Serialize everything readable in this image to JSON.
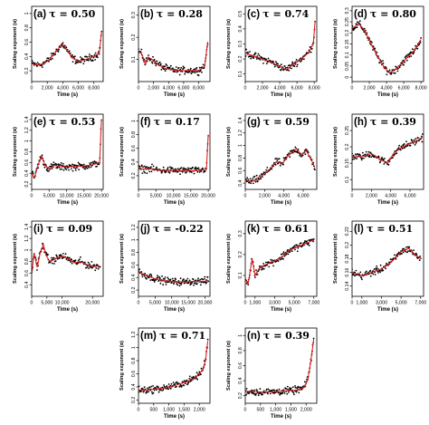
{
  "chart_data": [
    {
      "type": "scatter",
      "label": "(a)",
      "tau": "τ = 0.50",
      "ylabel": "Scaling exponent (α)",
      "xlabel": "Time (s)",
      "xticks": [
        0,
        2000,
        4000,
        6000,
        8000
      ],
      "xtick_labels": [
        "0",
        "2,000",
        "4,000",
        "6,000",
        "8,000"
      ],
      "xlim": [
        0,
        9200
      ],
      "yticks": [
        0.2,
        0.4,
        0.6,
        0.8,
        1.0
      ],
      "ylim": [
        0.05,
        1.1
      ],
      "trend": [
        [
          0,
          0.3
        ],
        [
          800,
          0.28
        ],
        [
          1500,
          0.3
        ],
        [
          2200,
          0.35
        ],
        [
          2800,
          0.42
        ],
        [
          3500,
          0.52
        ],
        [
          4000,
          0.57
        ],
        [
          4500,
          0.5
        ],
        [
          5200,
          0.38
        ],
        [
          6000,
          0.33
        ],
        [
          7000,
          0.36
        ],
        [
          8000,
          0.4
        ],
        [
          8700,
          0.45
        ],
        [
          9000,
          0.75
        ]
      ]
    },
    {
      "type": "scatter",
      "label": "(b)",
      "tau": "τ = 0.28",
      "ylabel": "Scaling exponent (α)",
      "xlabel": "Time (s)",
      "xticks": [
        0,
        2000,
        4000,
        6000,
        8000
      ],
      "xtick_labels": [
        "0",
        "2,000",
        "4,000",
        "6,000",
        "8,000"
      ],
      "xlim": [
        0,
        9500
      ],
      "yticks": [
        0.1,
        0.2,
        0.3
      ],
      "ylim": [
        0.0,
        0.34
      ],
      "trend": [
        [
          0,
          0.14
        ],
        [
          500,
          0.12
        ],
        [
          900,
          0.08
        ],
        [
          1300,
          0.11
        ],
        [
          1800,
          0.1
        ],
        [
          2500,
          0.08
        ],
        [
          3500,
          0.06
        ],
        [
          5000,
          0.05
        ],
        [
          6500,
          0.05
        ],
        [
          8000,
          0.05
        ],
        [
          8800,
          0.07
        ],
        [
          9200,
          0.18
        ]
      ]
    },
    {
      "type": "scatter",
      "label": "(c)",
      "tau": "τ = 0.74",
      "ylabel": "Scaling exponent (α)",
      "xlabel": "Time (s)",
      "xticks": [
        0,
        2000,
        4000,
        6000,
        8000
      ],
      "xtick_labels": [
        "0",
        "2,000",
        "4,000",
        "6,000",
        "8,000"
      ],
      "xlim": [
        0,
        8300
      ],
      "yticks": [
        0.1,
        0.2,
        0.3,
        0.4,
        0.5
      ],
      "ylim": [
        0.05,
        0.55
      ],
      "trend": [
        [
          0,
          0.24
        ],
        [
          1000,
          0.22
        ],
        [
          2000,
          0.2
        ],
        [
          3000,
          0.18
        ],
        [
          4000,
          0.15
        ],
        [
          4800,
          0.13
        ],
        [
          5500,
          0.16
        ],
        [
          6500,
          0.2
        ],
        [
          7300,
          0.24
        ],
        [
          7900,
          0.3
        ],
        [
          8100,
          0.45
        ]
      ]
    },
    {
      "type": "scatter",
      "label": "(d)",
      "tau": "τ = 0.80",
      "ylabel": "Scaling exponent (α)",
      "xlabel": "Time (s)",
      "xticks": [
        0,
        2000,
        4000,
        6000,
        8000
      ],
      "xtick_labels": [
        "0",
        "2,000",
        "4,000",
        "6,000",
        "8,000"
      ],
      "xlim": [
        0,
        8300
      ],
      "yticks": [
        0.0,
        0.05,
        0.1,
        0.15,
        0.2,
        0.25,
        0.3
      ],
      "ylim": [
        -0.02,
        0.32
      ],
      "trend": [
        [
          0,
          0.22
        ],
        [
          800,
          0.24
        ],
        [
          1500,
          0.21
        ],
        [
          2200,
          0.15
        ],
        [
          3000,
          0.09
        ],
        [
          3800,
          0.04
        ],
        [
          4400,
          0.02
        ],
        [
          5200,
          0.04
        ],
        [
          6200,
          0.08
        ],
        [
          7200,
          0.12
        ],
        [
          8000,
          0.17
        ]
      ]
    },
    {
      "type": "scatter",
      "label": "(e)",
      "tau": "τ = 0.53",
      "ylabel": "Scaling exponent (α)",
      "xlabel": "Time (s)",
      "xticks": [
        0,
        5000,
        10000,
        15000,
        20000
      ],
      "xtick_labels": [
        "0",
        "5,000",
        "10,000",
        "15,000",
        "20,000"
      ],
      "xlim": [
        0,
        20500
      ],
      "yticks": [
        0.2,
        0.4,
        0.6,
        0.8,
        1.0,
        1.2,
        1.4
      ],
      "ylim": [
        0.1,
        1.5
      ],
      "trend": [
        [
          0,
          0.4
        ],
        [
          800,
          0.32
        ],
        [
          1800,
          0.55
        ],
        [
          2800,
          0.72
        ],
        [
          3800,
          0.55
        ],
        [
          5000,
          0.48
        ],
        [
          6500,
          0.55
        ],
        [
          8000,
          0.52
        ],
        [
          11000,
          0.52
        ],
        [
          14000,
          0.53
        ],
        [
          17000,
          0.55
        ],
        [
          19500,
          0.6
        ],
        [
          20000,
          1.4
        ]
      ]
    },
    {
      "type": "scatter",
      "label": "(f)",
      "tau": "τ = 0.17",
      "ylabel": "Scaling exponent (α)",
      "xlabel": "Time (s)",
      "xticks": [
        0,
        5000,
        10000,
        15000,
        20000
      ],
      "xtick_labels": [
        "0",
        "5,000",
        "10,000",
        "15,000",
        "20,000"
      ],
      "xlim": [
        0,
        20500
      ],
      "yticks": [
        0.2,
        0.4,
        0.6,
        0.8,
        1.0
      ],
      "ylim": [
        0.0,
        1.1
      ],
      "trend": [
        [
          0,
          0.3
        ],
        [
          2000,
          0.3
        ],
        [
          4000,
          0.3
        ],
        [
          6000,
          0.28
        ],
        [
          8000,
          0.28
        ],
        [
          10000,
          0.28
        ],
        [
          12000,
          0.27
        ],
        [
          14000,
          0.28
        ],
        [
          16000,
          0.27
        ],
        [
          18000,
          0.28
        ],
        [
          19500,
          0.3
        ],
        [
          20000,
          0.8
        ]
      ]
    },
    {
      "type": "scatter",
      "label": "(g)",
      "tau": "τ = 0.59",
      "ylabel": "Scaling exponent (α)",
      "xlabel": "Time (s)",
      "xticks": [
        0,
        2000,
        4000,
        6000
      ],
      "xtick_labels": [
        "0",
        "2,000",
        "4,000",
        "6,000"
      ],
      "xlim": [
        0,
        7400
      ],
      "yticks": [
        0.4,
        0.6,
        0.8,
        1.0,
        1.2,
        1.4
      ],
      "ylim": [
        0.3,
        1.5
      ],
      "trend": [
        [
          0,
          0.45
        ],
        [
          600,
          0.42
        ],
        [
          1500,
          0.48
        ],
        [
          2500,
          0.62
        ],
        [
          3300,
          0.75
        ],
        [
          3800,
          0.7
        ],
        [
          4500,
          0.85
        ],
        [
          5300,
          0.95
        ],
        [
          5800,
          0.85
        ],
        [
          6300,
          0.92
        ],
        [
          6900,
          0.75
        ],
        [
          7200,
          0.65
        ]
      ]
    },
    {
      "type": "scatter",
      "label": "(h)",
      "tau": "τ = 0.39",
      "ylabel": "Scaling exponent (α)",
      "xlabel": "Time (s)",
      "xticks": [
        0,
        2000,
        4000,
        6000
      ],
      "xtick_labels": [
        "0",
        "2,000",
        "4,000",
        "6,000"
      ],
      "xlim": [
        0,
        7400
      ],
      "yticks": [
        0.1,
        0.15,
        0.2,
        0.25
      ],
      "ylim": [
        0.07,
        0.3
      ],
      "trend": [
        [
          0,
          0.17
        ],
        [
          1000,
          0.17
        ],
        [
          2000,
          0.18
        ],
        [
          3000,
          0.16
        ],
        [
          3700,
          0.15
        ],
        [
          4300,
          0.18
        ],
        [
          5200,
          0.2
        ],
        [
          6000,
          0.21
        ],
        [
          6800,
          0.22
        ],
        [
          7300,
          0.23
        ]
      ]
    },
    {
      "type": "scatter",
      "label": "(i)",
      "tau": "τ = 0.09",
      "ylabel": "Scaling exponent (α)",
      "xlabel": "Time (s)",
      "xticks": [
        0,
        5000,
        10000,
        20000
      ],
      "xtick_labels": [
        "0",
        "5,000",
        "10,000",
        "20,000"
      ],
      "xlim": [
        0,
        23500
      ],
      "yticks": [
        0.4,
        0.6,
        0.8,
        1.0,
        1.2,
        1.4
      ],
      "ylim": [
        0.2,
        1.5
      ],
      "trend": [
        [
          0,
          0.6
        ],
        [
          800,
          0.95
        ],
        [
          1800,
          0.7
        ],
        [
          2800,
          0.95
        ],
        [
          3800,
          1.1
        ],
        [
          4800,
          0.9
        ],
        [
          6000,
          0.8
        ],
        [
          8000,
          0.85
        ],
        [
          10000,
          0.9
        ],
        [
          12000,
          0.85
        ],
        [
          14000,
          0.78
        ],
        [
          16000,
          0.8
        ],
        [
          18000,
          0.75
        ],
        [
          20000,
          0.72
        ],
        [
          22500,
          0.72
        ]
      ]
    },
    {
      "type": "scatter",
      "label": "(j)",
      "tau": "τ = -0.22",
      "ylabel": "Scaling exponent (α)",
      "xlabel": "Time (s)",
      "xticks": [
        0,
        5000,
        10000,
        15000,
        20000
      ],
      "xtick_labels": [
        "0",
        "5,000",
        "10,000",
        "15,000",
        "20,000"
      ],
      "xlim": [
        0,
        21500
      ],
      "yticks": [
        0.2,
        0.4,
        0.6,
        0.8,
        1.0,
        1.2
      ],
      "ylim": [
        0.1,
        1.3
      ],
      "trend": [
        [
          0,
          0.5
        ],
        [
          1500,
          0.45
        ],
        [
          3000,
          0.42
        ],
        [
          5000,
          0.38
        ],
        [
          8000,
          0.35
        ],
        [
          11000,
          0.33
        ],
        [
          14000,
          0.33
        ],
        [
          17000,
          0.34
        ],
        [
          20000,
          0.34
        ],
        [
          21000,
          0.36
        ]
      ]
    },
    {
      "type": "scatter",
      "label": "(k)",
      "tau": "τ = 0.61",
      "ylabel": "Scaling exponent (α)",
      "xlabel": "Time (s)",
      "xticks": [
        0,
        1000,
        3000,
        5000,
        7000
      ],
      "xtick_labels": [
        "0",
        "1,000",
        "3,000",
        "5,000",
        "7,000"
      ],
      "xlim": [
        0,
        7300
      ],
      "yticks": [
        0.1,
        0.2,
        0.3
      ],
      "ylim": [
        0.0,
        0.36
      ],
      "trend": [
        [
          0,
          0.08
        ],
        [
          300,
          0.06
        ],
        [
          700,
          0.18
        ],
        [
          1000,
          0.1
        ],
        [
          1500,
          0.14
        ],
        [
          2500,
          0.16
        ],
        [
          3500,
          0.18
        ],
        [
          4500,
          0.22
        ],
        [
          5500,
          0.24
        ],
        [
          6500,
          0.26
        ],
        [
          7000,
          0.27
        ]
      ]
    },
    {
      "type": "scatter",
      "label": "(l)",
      "tau": "τ = 0.51",
      "ylabel": "Scaling exponent (α)",
      "xlabel": "Time (s)",
      "xticks": [
        0,
        1000,
        3000,
        5000,
        7000
      ],
      "xtick_labels": [
        "0",
        "1,000",
        "3,000",
        "5,000",
        "7,000"
      ],
      "xlim": [
        0,
        7300
      ],
      "yticks": [
        0.14,
        0.16,
        0.18,
        0.2,
        0.22
      ],
      "ylim": [
        0.125,
        0.235
      ],
      "trend": [
        [
          0,
          0.16
        ],
        [
          1000,
          0.155
        ],
        [
          2000,
          0.16
        ],
        [
          3000,
          0.165
        ],
        [
          4000,
          0.175
        ],
        [
          5000,
          0.19
        ],
        [
          5800,
          0.195
        ],
        [
          6500,
          0.185
        ],
        [
          7000,
          0.18
        ]
      ]
    },
    {
      "type": "scatter",
      "label": "(m)",
      "tau": "τ = 0.71",
      "ylabel": "Scaling exponent (α)",
      "xlabel": "Time (s)",
      "xticks": [
        0,
        500,
        1000,
        1500,
        2000
      ],
      "xtick_labels": [
        "0",
        "500",
        "1,000",
        "1,500",
        "2,000"
      ],
      "xlim": [
        0,
        2350
      ],
      "yticks": [
        0.2,
        0.4,
        0.6,
        0.8,
        1.0,
        1.2
      ],
      "ylim": [
        0.15,
        1.3
      ],
      "trend": [
        [
          0,
          0.35
        ],
        [
          400,
          0.36
        ],
        [
          800,
          0.38
        ],
        [
          1200,
          0.42
        ],
        [
          1600,
          0.48
        ],
        [
          1900,
          0.55
        ],
        [
          2100,
          0.65
        ],
        [
          2200,
          0.8
        ],
        [
          2280,
          1.1
        ]
      ]
    },
    {
      "type": "scatter",
      "label": "(n)",
      "tau": "τ = 0.39",
      "ylabel": "Scaling exponent (α)",
      "xlabel": "Time (s)",
      "xticks": [
        0,
        500,
        1000,
        1500,
        2000
      ],
      "xtick_labels": [
        "0",
        "500",
        "1,000",
        "1,500",
        "2,000"
      ],
      "xlim": [
        0,
        2350
      ],
      "yticks": [
        0.2,
        0.4,
        0.6,
        0.8,
        1.0
      ],
      "ylim": [
        0.1,
        1.1
      ],
      "trend": [
        [
          0,
          0.26
        ],
        [
          400,
          0.25
        ],
        [
          800,
          0.25
        ],
        [
          1200,
          0.26
        ],
        [
          1600,
          0.27
        ],
        [
          1900,
          0.3
        ],
        [
          2050,
          0.4
        ],
        [
          2150,
          0.65
        ],
        [
          2250,
          0.95
        ]
      ]
    }
  ],
  "colors": {
    "points": "#000000",
    "trend": "#e02020",
    "axis": "#000000",
    "text": "#000000"
  }
}
